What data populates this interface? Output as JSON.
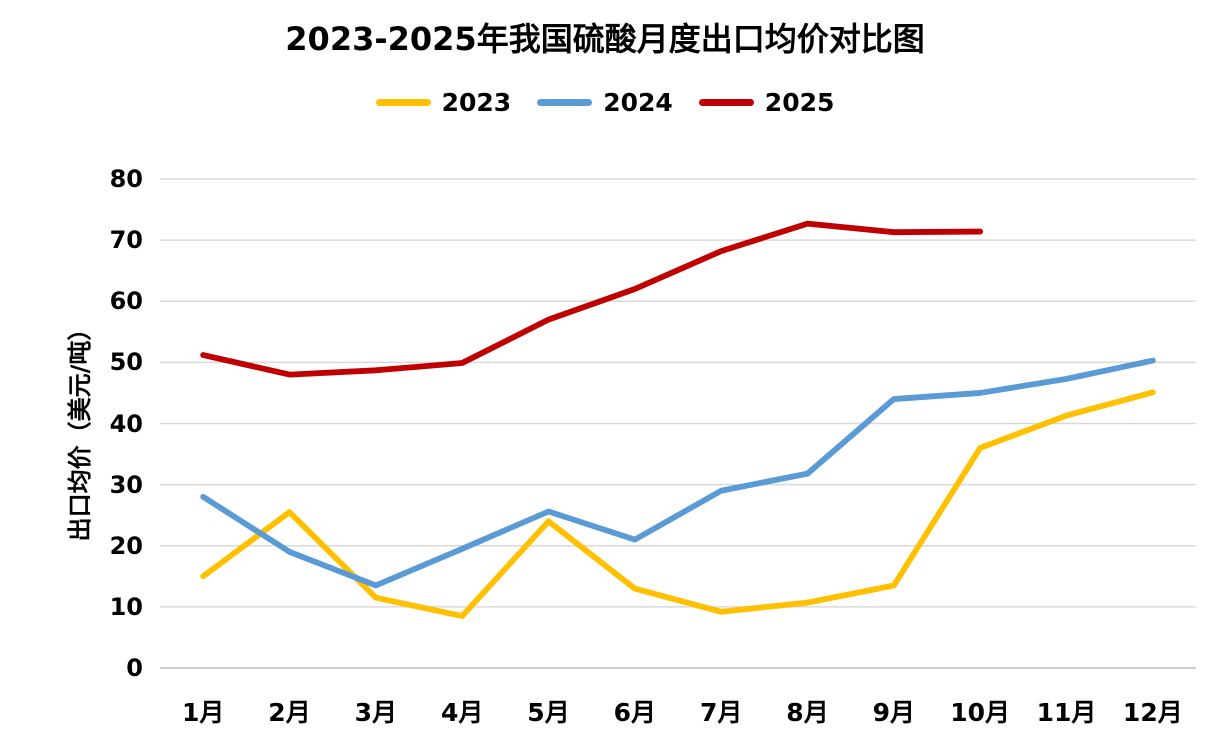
{
  "chart_data": {
    "type": "line",
    "title": "2023-2025年我国硫酸月度出口均价对比图",
    "xlabel": "",
    "ylabel": "出口均价（美元/吨）",
    "categories": [
      "1月",
      "2月",
      "3月",
      "4月",
      "5月",
      "6月",
      "7月",
      "8月",
      "9月",
      "10月",
      "11月",
      "12月"
    ],
    "y_ticks": [
      0,
      10,
      20,
      30,
      40,
      50,
      60,
      70,
      80
    ],
    "ylim": [
      0,
      80
    ],
    "grid": true,
    "legend_position": "top",
    "series": [
      {
        "name": "2023",
        "color": "#FFC000",
        "values": [
          15,
          25.5,
          11.5,
          8.5,
          24,
          13,
          9.2,
          10.7,
          13.5,
          36,
          41.3,
          45.1
        ]
      },
      {
        "name": "2024",
        "color": "#5B9BD5",
        "values": [
          28,
          19,
          13.5,
          19.5,
          25.6,
          21,
          29,
          31.8,
          44,
          45,
          47.3,
          50.3
        ]
      },
      {
        "name": "2025",
        "color": "#C00000",
        "values": [
          51.2,
          48,
          48.7,
          49.9,
          57,
          62,
          68.2,
          72.7,
          71.3,
          71.4
        ]
      }
    ],
    "gridline_color": "#D9D9D9",
    "axis_line_color": "#BFBFBF"
  }
}
